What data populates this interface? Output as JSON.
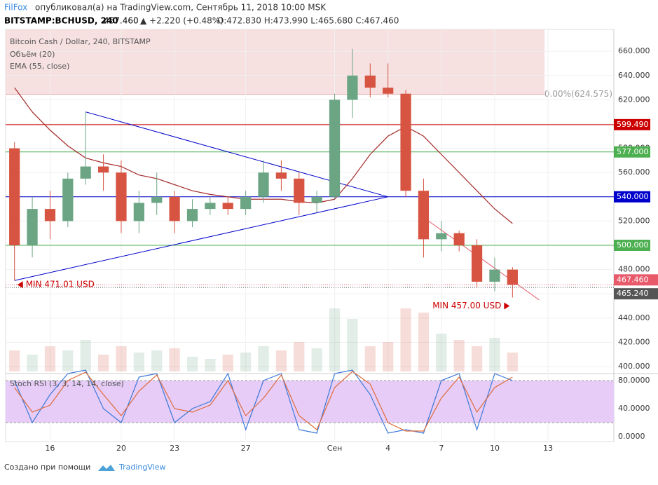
{
  "header": {
    "author": "FilFox",
    "published": "опубликовал(а) на TradingView.com, Сентябрь 11, 2018 10:00 MSK",
    "symbol": "BITSTAMP:BCHUSD, 240",
    "last": "467.460",
    "change": "▲ +2.220 (+0.48%)",
    "ohlc": "O:472.830 H:473.990 L:465.680 C:467.460"
  },
  "chart_data": {
    "type": "candlestick",
    "title": "Bitcoin Cash / Dollar, 240, BITSTAMP",
    "volume_label": "Объём (20)",
    "ema_label": "EMA (55, close)",
    "xlim": [
      -0.5,
      33.7
    ],
    "ylim": [
      396,
      678
    ],
    "xticks": [
      {
        "value": 2,
        "label": "16"
      },
      {
        "value": 6,
        "label": "20"
      },
      {
        "value": 9,
        "label": "23"
      },
      {
        "value": 13,
        "label": "27"
      },
      {
        "value": 18,
        "label": "Сен"
      },
      {
        "value": 21,
        "label": "4"
      },
      {
        "value": 24,
        "label": "7"
      },
      {
        "value": 27,
        "label": "10"
      },
      {
        "value": 30,
        "label": "13"
      }
    ],
    "yticks": [
      {
        "value": 400,
        "label": "400.000"
      },
      {
        "value": 420,
        "label": "420.000"
      },
      {
        "value": 440,
        "label": "440.000"
      },
      {
        "value": 460,
        "label": "460.000"
      },
      {
        "value": 480,
        "label": "480.000"
      },
      {
        "value": 500,
        "label": "500.000"
      },
      {
        "value": 520,
        "label": "520.000"
      },
      {
        "value": 540,
        "label": "540.000"
      },
      {
        "value": 560,
        "label": "560.000"
      },
      {
        "value": 580,
        "label": "580.000"
      },
      {
        "value": 600,
        "label": "600.000"
      },
      {
        "value": 620,
        "label": "620.000"
      },
      {
        "value": 640,
        "label": "640.000"
      },
      {
        "value": 660,
        "label": "660.000"
      }
    ],
    "x": [
      0,
      1,
      2,
      3,
      4,
      5,
      6,
      7,
      8,
      9,
      10,
      11,
      12,
      13,
      14,
      15,
      16,
      17,
      18,
      19,
      20,
      21,
      22,
      23,
      24,
      25,
      26,
      27,
      28
    ],
    "open": [
      580,
      500,
      530,
      520,
      555,
      565,
      560,
      520,
      535,
      540,
      520,
      530,
      535,
      530,
      540,
      560,
      555,
      535,
      540,
      620,
      640,
      630,
      625,
      545,
      505,
      510,
      500,
      470,
      480
    ],
    "high": [
      585,
      540,
      545,
      560,
      610,
      575,
      570,
      545,
      560,
      545,
      538,
      540,
      540,
      545,
      570,
      570,
      560,
      545,
      625,
      662,
      650,
      650,
      628,
      555,
      520,
      512,
      505,
      490,
      482
    ],
    "low": [
      471,
      490,
      505,
      515,
      550,
      545,
      510,
      510,
      525,
      510,
      515,
      525,
      525,
      525,
      535,
      545,
      525,
      527,
      538,
      605,
      622,
      622,
      540,
      490,
      495,
      495,
      465,
      462,
      457
    ],
    "close": [
      500,
      530,
      520,
      555,
      565,
      560,
      520,
      535,
      540,
      520,
      530,
      535,
      530,
      540,
      560,
      555,
      535,
      540,
      620,
      640,
      630,
      625,
      545,
      505,
      510,
      500,
      470,
      480,
      467.46
    ],
    "up_color": "#6ba583",
    "down_color": "#d75442",
    "volume": [
      10,
      8,
      12,
      10,
      15,
      8,
      12,
      9,
      10,
      11,
      7,
      6,
      8,
      9,
      12,
      10,
      14,
      11,
      30,
      25,
      12,
      14,
      30,
      28,
      18,
      15,
      12,
      16,
      9
    ],
    "ema": [
      630,
      610,
      595,
      582,
      572,
      568,
      565,
      558,
      555,
      550,
      545,
      542,
      540,
      538,
      538,
      538,
      536,
      535,
      538,
      555,
      575,
      590,
      598,
      590,
      575,
      560,
      545,
      530,
      518
    ],
    "ema_color": "#a52a2a",
    "levels": [
      {
        "value": 599.49,
        "label": "599.490",
        "color": "#cc0000"
      },
      {
        "value": 577,
        "label": "577.000",
        "color": "#4caf50"
      },
      {
        "value": 540,
        "label": "540.000",
        "color": "#0000cc"
      },
      {
        "value": 500,
        "label": "500.000",
        "color": "#4caf50"
      }
    ],
    "price_tags": [
      {
        "value": 467.46,
        "label": "467.460",
        "color": "#e8596a"
      },
      {
        "value": 465.24,
        "label": "465.240",
        "color": "#555555"
      }
    ],
    "fib": {
      "value": 624.575,
      "label": "0.00%(624.575)",
      "end": 29.8,
      "color": "#f6e0e0"
    },
    "drawings": [
      {
        "color": "#0000cc",
        "points": [
          [
            4,
            610
          ],
          [
            21,
            540
          ],
          [
            0,
            471
          ]
        ]
      },
      {
        "color": "#e8596a",
        "points": [
          [
            23,
            523
          ],
          [
            29.5,
            455
          ]
        ]
      }
    ],
    "annotations": [
      {
        "label": "MIN 471.01 USD",
        "x": 0,
        "value": 471.01,
        "side": "right"
      },
      {
        "label": "MIN 457.00 USD",
        "x": 28,
        "value": 457,
        "side": "left"
      }
    ],
    "rsi": {
      "label": "Stoch RSI (3, 3, 14, 14, close)",
      "ylim": [
        -5,
        85
      ],
      "band": [
        20,
        80
      ],
      "yticks": [
        {
          "value": 0,
          "label": "0.0000"
        },
        {
          "value": 40,
          "label": "40.0000"
        },
        {
          "value": 80,
          "label": "80.0000"
        }
      ],
      "k": [
        80,
        20,
        60,
        90,
        95,
        40,
        20,
        85,
        90,
        20,
        40,
        50,
        90,
        10,
        80,
        90,
        10,
        5,
        90,
        95,
        60,
        5,
        10,
        5,
        80,
        90,
        10,
        90,
        80
      ],
      "d": [
        70,
        35,
        45,
        80,
        92,
        60,
        30,
        65,
        88,
        40,
        35,
        45,
        80,
        30,
        55,
        88,
        30,
        10,
        70,
        93,
        75,
        20,
        8,
        8,
        55,
        85,
        35,
        70,
        85
      ],
      "k_color": "#3c78d8",
      "d_color": "#e06c3c"
    }
  },
  "footer": {
    "text": "Создано при помощи",
    "brand": "TradingView"
  }
}
